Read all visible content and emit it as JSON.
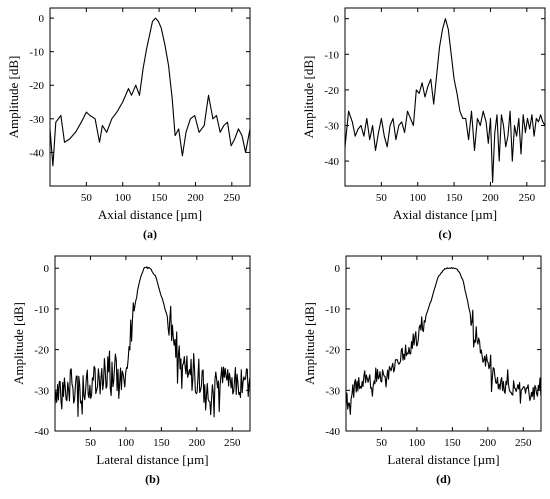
{
  "chart_data": [
    {
      "id": "a",
      "type": "line",
      "caption": "(a)",
      "xlabel": "Axial distance [µm]",
      "ylabel": "Amplitude [dB]",
      "xlim": [
        0,
        275
      ],
      "ylim": [
        -50,
        3
      ],
      "xticks": [
        50,
        100,
        150,
        200,
        250
      ],
      "yticks": [
        0,
        -10,
        -20,
        -30,
        -40
      ],
      "grid": false,
      "x": [
        0,
        4,
        8,
        15,
        20,
        27,
        35,
        43,
        50,
        55,
        62,
        68,
        72,
        78,
        85,
        92,
        100,
        108,
        112,
        118,
        123,
        128,
        133,
        137,
        141,
        145,
        149,
        153,
        158,
        163,
        168,
        172,
        177,
        182,
        187,
        193,
        199,
        205,
        212,
        218,
        224,
        229,
        234,
        239,
        244,
        249,
        254,
        259,
        264,
        269,
        275
      ],
      "y": [
        -33,
        -44,
        -31,
        -29,
        -37,
        -36,
        -34,
        -31,
        -28,
        -29,
        -30,
        -37,
        -32,
        -34,
        -30,
        -28,
        -25,
        -21,
        -23,
        -20,
        -23,
        -15,
        -9,
        -5,
        -1,
        0,
        -1,
        -3,
        -8,
        -14,
        -24,
        -35,
        -33,
        -41,
        -34,
        -30,
        -29,
        -34,
        -32,
        -23,
        -30,
        -29,
        -34,
        -32,
        -31,
        -38,
        -36,
        -33,
        -35,
        -40,
        -33
      ]
    },
    {
      "id": "c",
      "type": "line",
      "caption": "(c)",
      "xlabel": "Axial distance [µm]",
      "ylabel": "Amplitude [dB]",
      "xlim": [
        0,
        275
      ],
      "ylim": [
        -47,
        3
      ],
      "xticks": [
        50,
        100,
        150,
        200,
        250
      ],
      "yticks": [
        0,
        -10,
        -20,
        -30,
        -40
      ],
      "grid": false,
      "x": [
        0,
        5,
        10,
        14,
        18,
        22,
        26,
        30,
        34,
        38,
        42,
        46,
        50,
        54,
        58,
        62,
        66,
        70,
        74,
        78,
        82,
        86,
        90,
        94,
        98,
        102,
        106,
        110,
        114,
        118,
        122,
        126,
        130,
        134,
        138,
        142,
        146,
        150,
        154,
        158,
        162,
        166,
        170,
        174,
        178,
        182,
        186,
        190,
        194,
        197,
        200,
        203,
        206,
        209,
        212,
        215,
        218,
        221,
        224,
        227,
        230,
        233,
        236,
        239,
        242,
        245,
        248,
        251,
        254,
        257,
        260,
        263,
        266,
        269,
        272,
        275
      ],
      "y": [
        -36,
        -26,
        -29,
        -33,
        -31,
        -30,
        -33,
        -28,
        -34,
        -30,
        -37,
        -32,
        -28,
        -33,
        -36,
        -30,
        -28,
        -34,
        -30,
        -29,
        -32,
        -26,
        -28,
        -30,
        -20,
        -21,
        -18,
        -22,
        -19,
        -17,
        -24,
        -16,
        -8,
        -3,
        0,
        -3,
        -10,
        -17,
        -21,
        -26,
        -28,
        -28,
        -34,
        -26,
        -37,
        -28,
        -30,
        -26,
        -29,
        -35,
        -28,
        -46,
        -32,
        -27,
        -40,
        -27,
        -30,
        -36,
        -33,
        -26,
        -40,
        -30,
        -33,
        -28,
        -38,
        -27,
        -32,
        -28,
        -31,
        -27,
        -33,
        -28,
        -29,
        -27,
        -29,
        -30
      ]
    },
    {
      "id": "b",
      "type": "line",
      "caption": "(b)",
      "xlabel": "Lateral distance [µm]",
      "ylabel": "Amplitude [dB]",
      "xlim": [
        0,
        275
      ],
      "ylim": [
        -40,
        3
      ],
      "xticks": [
        50,
        100,
        150,
        200,
        250
      ],
      "yticks": [
        0,
        -10,
        -20,
        -30,
        -40
      ],
      "grid": false,
      "x": [
        0,
        10,
        20,
        30,
        40,
        50,
        60,
        70,
        80,
        90,
        98,
        103,
        108,
        113,
        118,
        123,
        126,
        130,
        134,
        138,
        142,
        147,
        152,
        157,
        162,
        167,
        172,
        177,
        182,
        190,
        200,
        210,
        220,
        230,
        240,
        250,
        260,
        270,
        275
      ],
      "y": [
        -32,
        -31,
        -30,
        -30,
        -29,
        -28,
        -28,
        -27,
        -27,
        -26,
        -26,
        -21,
        -15,
        -9,
        -4,
        -1,
        0,
        0,
        0,
        -1,
        -2,
        -5,
        -8,
        -11,
        -14,
        -17,
        -20,
        -22,
        -23,
        -26,
        -27,
        -29,
        -29,
        -28,
        -27,
        -28,
        -28,
        -28,
        -29
      ],
      "noise_amplitude_db": 5
    },
    {
      "id": "d",
      "type": "line",
      "caption": "(d)",
      "xlabel": "Lateral distance [µm]",
      "ylabel": "Amplitude [dB]",
      "xlim": [
        0,
        275
      ],
      "ylim": [
        -40,
        3
      ],
      "xticks": [
        50,
        100,
        150,
        200,
        250
      ],
      "yticks": [
        0,
        -10,
        -20,
        -30,
        -40
      ],
      "grid": false,
      "x": [
        0,
        10,
        20,
        30,
        40,
        50,
        60,
        70,
        80,
        90,
        100,
        110,
        120,
        125,
        130,
        135,
        140,
        145,
        150,
        155,
        160,
        165,
        170,
        175,
        180,
        190,
        200,
        210,
        220,
        230,
        240,
        250,
        260,
        270,
        275
      ],
      "y": [
        -33,
        -30,
        -29,
        -28,
        -27,
        -26,
        -25,
        -23,
        -21,
        -19,
        -17,
        -13,
        -8,
        -5,
        -2,
        -1,
        0,
        0,
        0,
        0,
        -1,
        -3,
        -7,
        -11,
        -15,
        -21,
        -24,
        -27,
        -28,
        -29,
        -29,
        -30,
        -30,
        -30,
        -30
      ],
      "noise_amplitude_db": 3
    }
  ]
}
